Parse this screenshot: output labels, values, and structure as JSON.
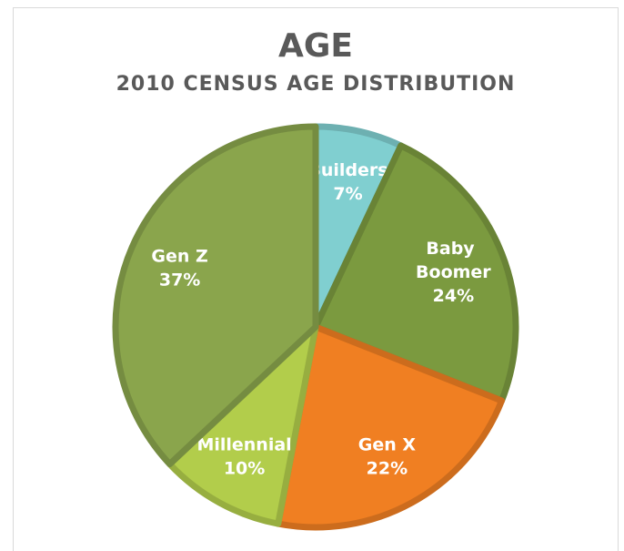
{
  "chart_data": {
    "type": "pie",
    "title": "AGE",
    "subtitle": "2010 CENSUS AGE DISTRIBUTION",
    "categories": [
      "Builders",
      "Baby Boomer",
      "Gen X",
      "Millennial",
      "Gen Z"
    ],
    "values": [
      7,
      24,
      22,
      10,
      37
    ],
    "value_labels": [
      "7%",
      "24%",
      "22%",
      "10%",
      "37%"
    ],
    "colors": [
      "#80cfd0",
      "#7b9a3f",
      "#f07f22",
      "#b2cd4b",
      "#8aa54c"
    ]
  }
}
